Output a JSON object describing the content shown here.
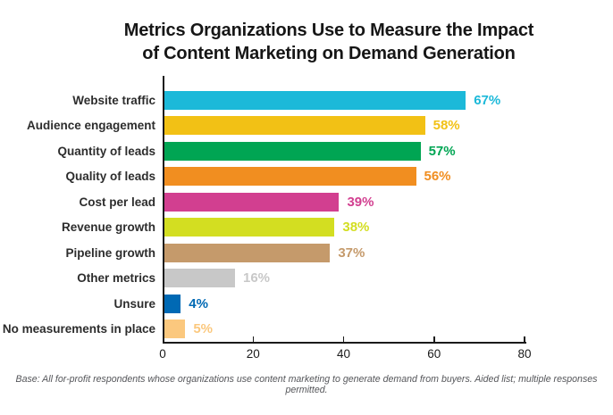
{
  "title": {
    "lines": [
      "Metrics Organizations Use to Measure the Impact",
      "of Content Marketing on Demand Generation"
    ]
  },
  "chart_data": {
    "type": "bar",
    "orientation": "horizontal",
    "title": "Metrics Organizations Use to Measure the Impact of Content Marketing on Demand Generation",
    "categories": [
      "Website traffic",
      "Audience engagement",
      "Quantity of leads",
      "Quality of leads",
      "Cost per lead",
      "Revenue growth",
      "Pipeline growth",
      "Other metrics",
      "Unsure",
      "No measurements in place"
    ],
    "values": [
      67,
      58,
      57,
      56,
      39,
      38,
      37,
      16,
      4,
      5
    ],
    "data_labels": [
      "67%",
      "58%",
      "57%",
      "56%",
      "39%",
      "38%",
      "37%",
      "16%",
      "4%",
      "5%"
    ],
    "bar_colors": [
      "#1cb9d9",
      "#f2c115",
      "#00a553",
      "#f18e20",
      "#d23f90",
      "#d3de21",
      "#c59a6b",
      "#c8c8c8",
      "#0069b4",
      "#fbc87e"
    ],
    "xlabel": "",
    "ylabel": "",
    "x_ticks": [
      0,
      20,
      40,
      60,
      80
    ],
    "xlim": [
      0,
      80
    ],
    "grid": false,
    "legend": false,
    "axis_color": "#1a1a1a"
  },
  "footnote": "Base: All for-profit respondents whose organizations use content marketing to generate demand from buyers. Aided list; multiple responses permitted."
}
